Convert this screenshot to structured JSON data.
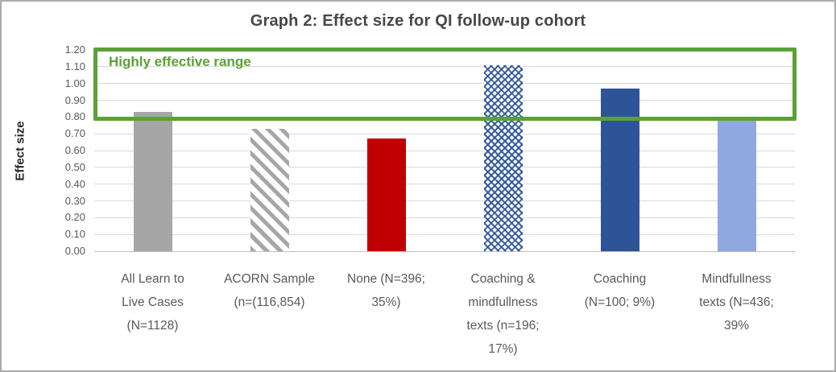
{
  "window": {
    "background": "#ffffff",
    "border_color": "#ababab"
  },
  "chart_data": {
    "type": "bar",
    "title": "Graph 2: Effect size for QI follow-up cohort",
    "xlabel": "",
    "ylabel": "Effect size",
    "ylim": [
      0.0,
      1.2
    ],
    "ytick_step": 0.1,
    "ytick_labels": [
      "0.00",
      "0.10",
      "0.20",
      "0.30",
      "0.40",
      "0.50",
      "0.60",
      "0.70",
      "0.80",
      "0.90",
      "1.00",
      "1.10",
      "1.20"
    ],
    "grid": "horizontal",
    "legend_position": "none",
    "categories": [
      "All Learn to\nLive Cases\n(N=1128)",
      "ACORN Sample\n(n=(116,854)",
      "None (N=396;\n35%)",
      "Coaching &\nmindfullness\ntexts (n=196;\n17%)",
      "Coaching\n(N=100; 9%)",
      "Mindfullness\ntexts (N=436;\n39%"
    ],
    "values": [
      0.83,
      0.73,
      0.67,
      1.11,
      0.97,
      0.78
    ],
    "bar_styles": [
      "solid-gray",
      "diagonal-stripe-gray",
      "solid-red",
      "lattice-blue",
      "solid-dark-blue",
      "solid-light-blue"
    ],
    "annotation": {
      "label": "Highly effective range",
      "y_range": [
        0.8,
        1.2
      ],
      "color": "#5ba135"
    },
    "colors": {
      "gray_bar": "#a6a6a6",
      "stripe_bar": "#a6a6a6",
      "red_bar": "#c00000",
      "lattice_bar": "#2e5597",
      "dark_blue_bar": "#2d5496",
      "light_blue_bar": "#8fa9de",
      "annotation_green": "#5ba135",
      "title_text": "#474747",
      "axis_text": "#595959",
      "gridline": "#d9d9d9"
    }
  }
}
